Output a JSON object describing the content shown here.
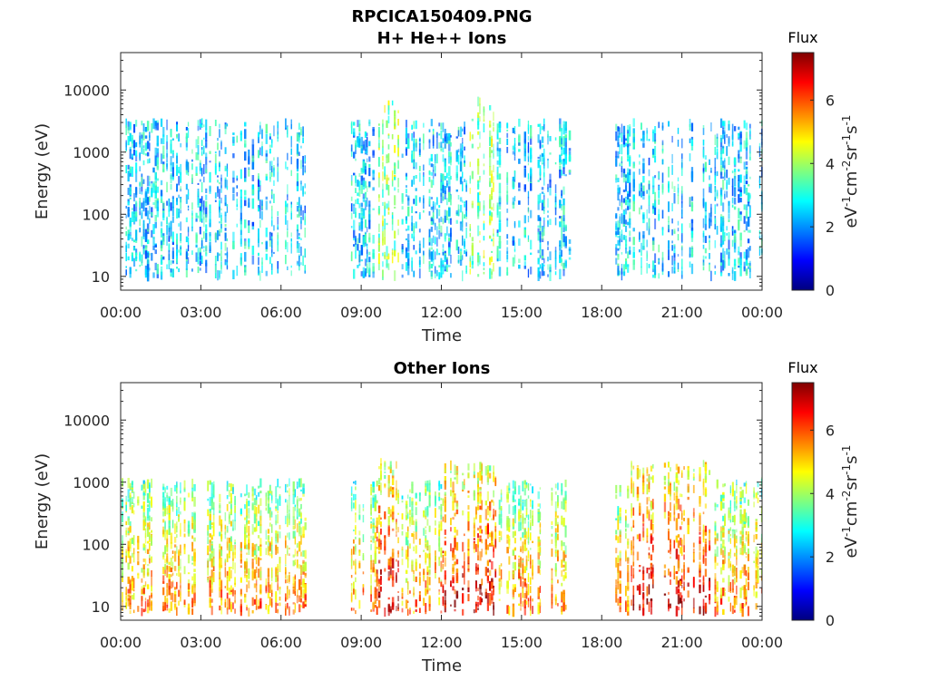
{
  "figure_title": "RPCICA150409.PNG",
  "colorbar_ticks": [
    "0",
    "2",
    "4",
    "6"
  ],
  "colorbar_title": "Flux",
  "colorbar_unit": {
    "base": "eV",
    "e1": "-1",
    "s1": "cm",
    "e2": "-2",
    "s2": "sr",
    "e3": "-1",
    "s3": "s",
    "e4": "-1"
  },
  "colormap": [
    "#00007f",
    "#0000ff",
    "#007fff",
    "#00ffff",
    "#7fff7f",
    "#ffff00",
    "#ff7f00",
    "#ff0000",
    "#7f0000"
  ],
  "chart_data": [
    {
      "type": "heatmap",
      "title": "H+ He++ Ions",
      "xlabel": "Time",
      "ylabel": "Energy (eV)",
      "x_ticks": [
        "00:00",
        "03:00",
        "06:00",
        "09:00",
        "12:00",
        "15:00",
        "18:00",
        "21:00",
        "00:00"
      ],
      "y_ticks": [
        "10",
        "100",
        "1000",
        "10000"
      ],
      "y_scale": "log",
      "ylim": [
        6,
        40000
      ],
      "x_range_hours": [
        0,
        24
      ],
      "color_range": [
        0,
        7.5
      ],
      "data_gaps_hours": [
        [
          6.9,
          8.6
        ],
        [
          16.9,
          18.5
        ]
      ],
      "peak_flux_hours": [
        [
          9.5,
          10.5
        ],
        [
          13.0,
          14.0
        ]
      ],
      "typical_flux": 2.5,
      "typical_energy_range_eV": [
        10,
        3000
      ]
    },
    {
      "type": "heatmap",
      "title": "Other Ions",
      "xlabel": "Time",
      "ylabel": "Energy (eV)",
      "x_ticks": [
        "00:00",
        "03:00",
        "06:00",
        "09:00",
        "12:00",
        "15:00",
        "18:00",
        "21:00",
        "00:00"
      ],
      "y_ticks": [
        "10",
        "100",
        "1000",
        "10000"
      ],
      "y_scale": "log",
      "ylim": [
        6,
        40000
      ],
      "x_range_hours": [
        0,
        24
      ],
      "color_range": [
        0,
        7.5
      ],
      "data_gaps_hours": [
        [
          6.9,
          8.6
        ],
        [
          16.9,
          18.5
        ]
      ],
      "peak_flux_hours": [
        [
          9.5,
          10.5
        ],
        [
          12.0,
          14.0
        ],
        [
          19.0,
          22.0
        ]
      ],
      "typical_flux": 4.5,
      "typical_energy_range_eV": [
        8,
        1000
      ]
    }
  ]
}
